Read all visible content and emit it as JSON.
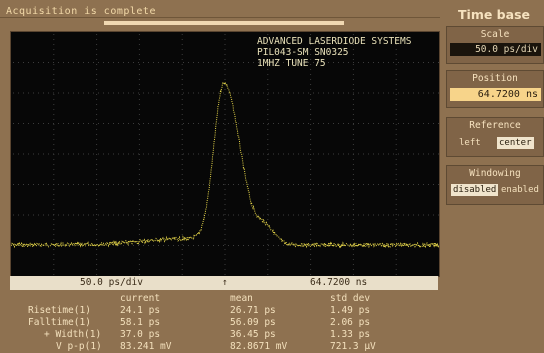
{
  "status_text": "Acquisition is complete",
  "progress": 1.0,
  "scope_info": [
    "ADVANCED LASERDIODE SYSTEMS",
    "PIL043-SM SN0325",
    "1MHZ TUNE 75"
  ],
  "readout": {
    "scale": "50.0 ps/div",
    "marker": "↑",
    "position": "64.7200 ns"
  },
  "side_panel": {
    "title": "Time base",
    "scale": {
      "title": "Scale",
      "value": "50.0 ps/div"
    },
    "position": {
      "title": "Position",
      "value": "64.7200 ns"
    },
    "reference": {
      "title": "Reference",
      "options": [
        "left",
        "center"
      ],
      "selected": "center"
    },
    "windowing": {
      "title": "Windowing",
      "options": [
        "disabled",
        "enabled"
      ],
      "selected": "disabled"
    }
  },
  "stats": {
    "headers": [
      "current",
      "mean",
      "std dev"
    ],
    "rows": [
      {
        "label": "Risetime(1)",
        "current": "24.1 ps",
        "mean": "26.71 ps",
        "std": "1.49 ps"
      },
      {
        "label": "Falltime(1)",
        "current": "58.1 ps",
        "mean": "56.09 ps",
        "std": "2.06 ps"
      },
      {
        "label": "+ Width(1)",
        "current": "37.0 ps",
        "mean": "36.45 ps",
        "std": "1.33 ps"
      },
      {
        "label": "V p-p(1)",
        "current": "83.241 mV",
        "mean": "82.8671 mV",
        "std": "721.3 µV"
      }
    ]
  },
  "colors": {
    "bezel": "#8e7150",
    "trace": "#e8d84a",
    "grid": "#3c3c3c",
    "highlight": "#f7d48a"
  }
}
